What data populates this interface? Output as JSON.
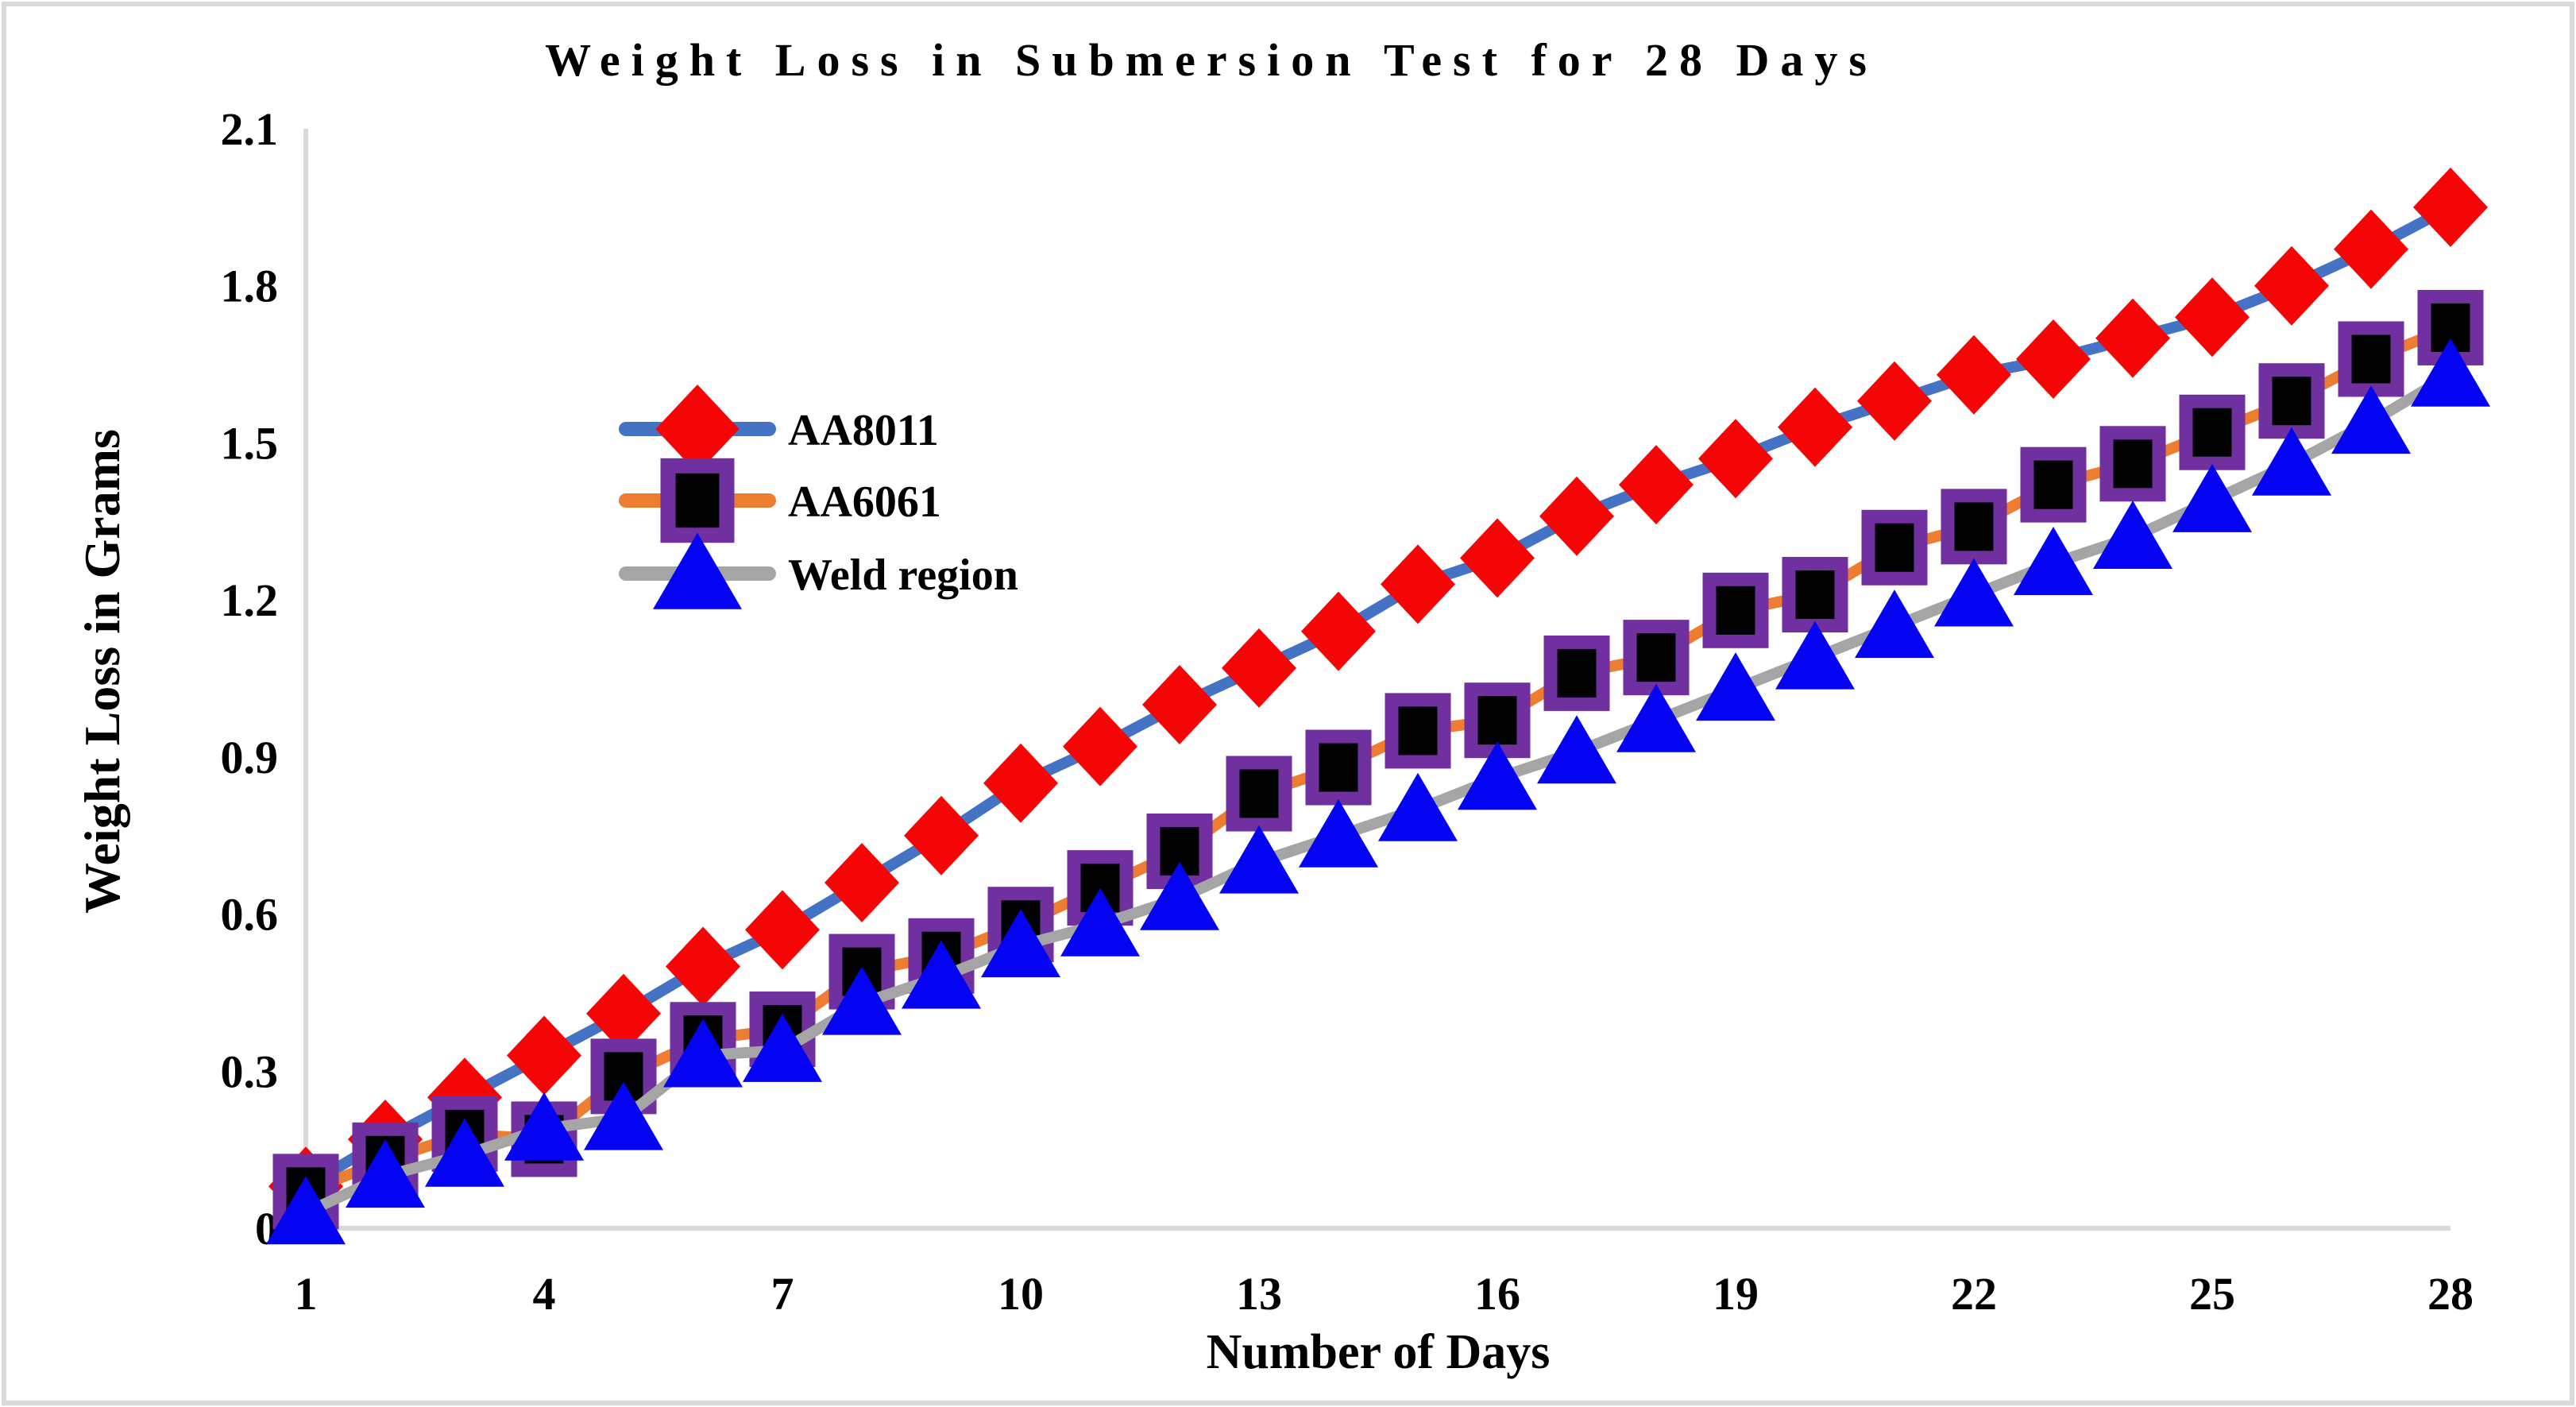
{
  "figure": {
    "title": "Weight Loss in Submersion Test for 28 Days",
    "x_axis_title": "Number of Days",
    "y_axis_title": "Weight Loss in Grams"
  },
  "colors": {
    "background": "#ffffff",
    "text": "#000000",
    "axis_line": "#d9d9d9",
    "figure_border": "#d9d9d9",
    "aa8011_line": "#4472c4",
    "aa8011_marker": "#f50505",
    "aa6061_line": "#ed7d31",
    "aa6061_marker_fill": "#000000",
    "aa6061_marker_border": "#7030a0",
    "weld_line": "#a5a5a5",
    "weld_marker": "#0404f2"
  },
  "chart_data": {
    "type": "line",
    "title": "Weight Loss in Submersion Test for 28 Days",
    "xlabel": "Number of Days",
    "ylabel": "Weight Loss in Grams",
    "x": [
      1,
      2,
      3,
      4,
      5,
      6,
      7,
      8,
      9,
      10,
      11,
      12,
      13,
      14,
      15,
      16,
      17,
      18,
      19,
      20,
      21,
      22,
      23,
      24,
      25,
      26,
      27,
      28
    ],
    "x_tick_labels": [
      "1",
      "4",
      "7",
      "10",
      "13",
      "16",
      "19",
      "22",
      "25",
      "28"
    ],
    "x_ticks": [
      1,
      4,
      7,
      10,
      13,
      16,
      19,
      22,
      25,
      28
    ],
    "y_tick_labels": [
      "0",
      "0.3",
      "0.6",
      "0.9",
      "1.2",
      "1.5",
      "1.8",
      "2.1"
    ],
    "y_ticks": [
      0,
      0.3,
      0.6,
      0.9,
      1.2,
      1.5,
      1.8,
      2.1
    ],
    "xlim": [
      1,
      28
    ],
    "ylim": [
      0,
      2.1
    ],
    "grid": false,
    "legend_position": "upper-left-inside",
    "series": [
      {
        "name": "AA8011",
        "line_color": "#4472c4",
        "marker": "diamond",
        "marker_color": "#f50505",
        "values": [
          0.08,
          0.17,
          0.25,
          0.33,
          0.41,
          0.5,
          0.57,
          0.66,
          0.75,
          0.85,
          0.92,
          1.0,
          1.07,
          1.14,
          1.23,
          1.28,
          1.36,
          1.42,
          1.47,
          1.53,
          1.58,
          1.63,
          1.66,
          1.7,
          1.74,
          1.8,
          1.87,
          1.95
        ]
      },
      {
        "name": "AA6061",
        "line_color": "#ed7d31",
        "marker": "square",
        "marker_color": "#000000",
        "marker_border_color": "#7030a0",
        "values": [
          0.07,
          0.13,
          0.18,
          0.17,
          0.29,
          0.36,
          0.38,
          0.49,
          0.52,
          0.58,
          0.65,
          0.72,
          0.83,
          0.88,
          0.95,
          0.97,
          1.06,
          1.09,
          1.18,
          1.21,
          1.3,
          1.34,
          1.42,
          1.46,
          1.52,
          1.58,
          1.66,
          1.72
        ]
      },
      {
        "name": "Weld region",
        "line_color": "#a5a5a5",
        "marker": "triangle",
        "marker_color": "#0404f2",
        "values": [
          0.03,
          0.1,
          0.14,
          0.19,
          0.21,
          0.33,
          0.34,
          0.43,
          0.48,
          0.54,
          0.58,
          0.63,
          0.7,
          0.75,
          0.8,
          0.86,
          0.91,
          0.97,
          1.03,
          1.09,
          1.15,
          1.21,
          1.27,
          1.32,
          1.39,
          1.46,
          1.54,
          1.63
        ]
      }
    ]
  }
}
